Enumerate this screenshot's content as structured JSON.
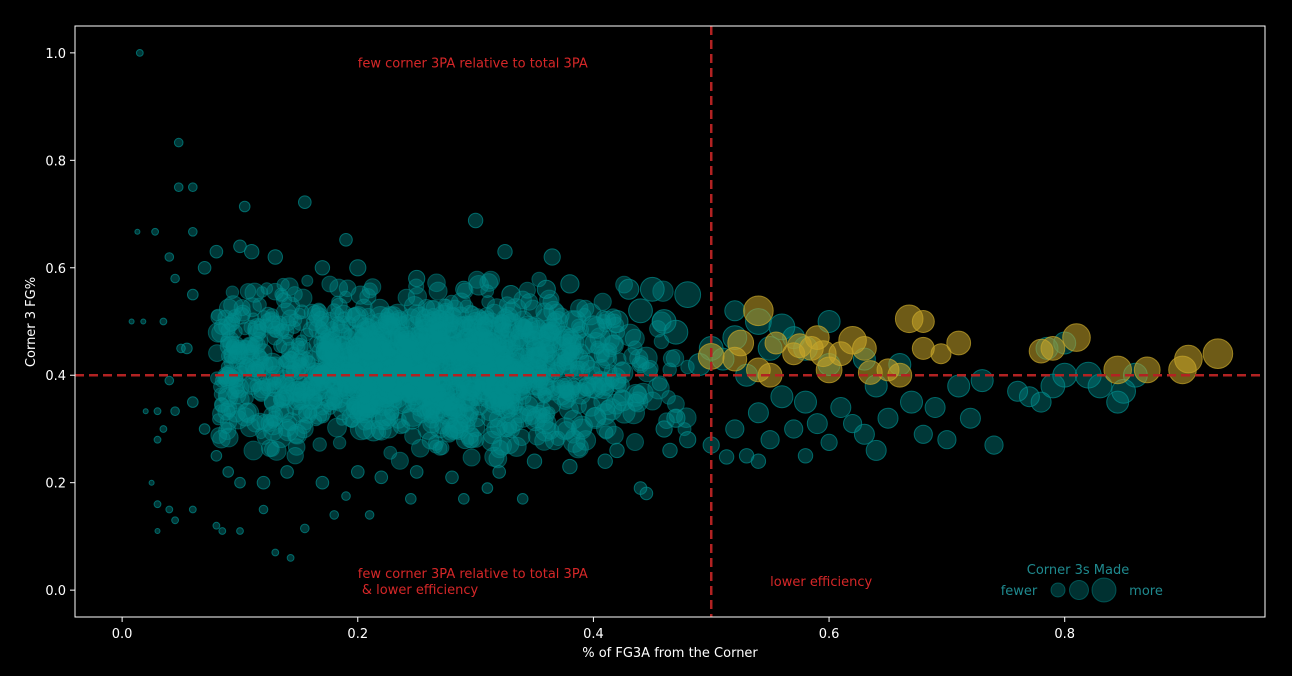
{
  "chart_data": {
    "type": "scatter",
    "title": "",
    "xlabel": "% of FG3A from the Corner",
    "ylabel": "Corner 3 FG%",
    "xlim": [
      -0.04,
      0.97
    ],
    "ylim": [
      -0.05,
      1.05
    ],
    "x_ticks": [
      "0.0",
      "0.2",
      "0.4",
      "0.6",
      "0.8"
    ],
    "x_tick_values": [
      0.0,
      0.2,
      0.4,
      0.6,
      0.8
    ],
    "y_ticks": [
      "0.0",
      "0.2",
      "0.4",
      "0.6",
      "0.8",
      "1.0"
    ],
    "y_tick_values": [
      0.0,
      0.2,
      0.4,
      0.6,
      0.8,
      1.0
    ],
    "grid": false,
    "reference_lines": {
      "x": 0.5,
      "y": 0.4,
      "color": "#b22222"
    },
    "annotations": [
      {
        "text": "few corner 3PA relative to total 3PA",
        "x": 0.2,
        "y": 0.98
      },
      {
        "text": "few corner 3PA relative to total 3PA",
        "x": 0.2,
        "y": 0.03
      },
      {
        "text": " & lower efficiency",
        "x": 0.2,
        "y": 0.0
      },
      {
        "text": "lower efficiency",
        "x": 0.55,
        "y": 0.015
      }
    ],
    "legend": {
      "title": "Corner 3s Made",
      "low_label": "fewer",
      "high_label": "more",
      "placement": "lower-right"
    },
    "colors": {
      "base": "#008b8b",
      "highlight": "#c8a62a"
    },
    "series": [
      {
        "color": "base",
        "points": [
          [
            0.015,
            1.0,
            2
          ],
          [
            0.048,
            0.833,
            3
          ],
          [
            0.048,
            0.75,
            3
          ],
          [
            0.06,
            0.75,
            3
          ],
          [
            0.104,
            0.714,
            4
          ],
          [
            0.155,
            0.722,
            5
          ],
          [
            0.013,
            0.667,
            1
          ],
          [
            0.028,
            0.667,
            2
          ],
          [
            0.06,
            0.667,
            3
          ],
          [
            0.19,
            0.652,
            5
          ],
          [
            0.3,
            0.688,
            6
          ],
          [
            0.325,
            0.63,
            6
          ],
          [
            0.365,
            0.62,
            7
          ],
          [
            0.04,
            0.62,
            3
          ],
          [
            0.008,
            0.5,
            1
          ],
          [
            0.018,
            0.5,
            1
          ],
          [
            0.035,
            0.5,
            2
          ],
          [
            0.045,
            0.58,
            3
          ],
          [
            0.05,
            0.45,
            3
          ],
          [
            0.04,
            0.39,
            3
          ],
          [
            0.02,
            0.333,
            1
          ],
          [
            0.03,
            0.333,
            2
          ],
          [
            0.045,
            0.333,
            3
          ],
          [
            0.035,
            0.3,
            2
          ],
          [
            0.03,
            0.28,
            2
          ],
          [
            0.025,
            0.2,
            1
          ],
          [
            0.03,
            0.16,
            2
          ],
          [
            0.04,
            0.15,
            2
          ],
          [
            0.045,
            0.13,
            2
          ],
          [
            0.03,
            0.11,
            1
          ],
          [
            0.06,
            0.15,
            2
          ],
          [
            0.08,
            0.12,
            2
          ],
          [
            0.085,
            0.11,
            2
          ],
          [
            0.1,
            0.11,
            2
          ],
          [
            0.13,
            0.07,
            2
          ],
          [
            0.143,
            0.06,
            2
          ],
          [
            0.155,
            0.115,
            3
          ],
          [
            0.18,
            0.14,
            3
          ],
          [
            0.12,
            0.15,
            3
          ],
          [
            0.21,
            0.14,
            3
          ],
          [
            0.19,
            0.175,
            3
          ],
          [
            0.245,
            0.17,
            4
          ],
          [
            0.29,
            0.17,
            4
          ],
          [
            0.31,
            0.19,
            4
          ],
          [
            0.34,
            0.17,
            4
          ],
          [
            0.44,
            0.19,
            5
          ],
          [
            0.445,
            0.18,
            5
          ],
          [
            0.465,
            0.26,
            6
          ],
          [
            0.5,
            0.27,
            7
          ],
          [
            0.513,
            0.248,
            6
          ],
          [
            0.53,
            0.25,
            6
          ],
          [
            0.54,
            0.24,
            6
          ],
          [
            0.58,
            0.25,
            6
          ],
          [
            0.6,
            0.275,
            7
          ],
          [
            0.62,
            0.31,
            8
          ],
          [
            0.63,
            0.29,
            9
          ],
          [
            0.64,
            0.26,
            9
          ],
          [
            0.68,
            0.29,
            8
          ],
          [
            0.7,
            0.28,
            8
          ],
          [
            0.74,
            0.27,
            8
          ],
          [
            0.72,
            0.32,
            9
          ],
          [
            0.65,
            0.32,
            9
          ],
          [
            0.67,
            0.35,
            10
          ],
          [
            0.69,
            0.34,
            9
          ],
          [
            0.71,
            0.38,
            10
          ],
          [
            0.73,
            0.39,
            10
          ],
          [
            0.76,
            0.37,
            9
          ],
          [
            0.77,
            0.36,
            9
          ],
          [
            0.78,
            0.35,
            9
          ],
          [
            0.79,
            0.38,
            11
          ],
          [
            0.8,
            0.4,
            11
          ],
          [
            0.785,
            0.45,
            10
          ],
          [
            0.82,
            0.4,
            12
          ],
          [
            0.83,
            0.38,
            11
          ],
          [
            0.845,
            0.35,
            10
          ],
          [
            0.85,
            0.37,
            11
          ],
          [
            0.86,
            0.4,
            11
          ],
          [
            0.8,
            0.46,
            10
          ],
          [
            0.63,
            0.43,
            10
          ],
          [
            0.66,
            0.42,
            10
          ],
          [
            0.6,
            0.5,
            10
          ],
          [
            0.56,
            0.49,
            12
          ],
          [
            0.52,
            0.52,
            9
          ],
          [
            0.48,
            0.55,
            12
          ],
          [
            0.45,
            0.56,
            11
          ],
          [
            0.43,
            0.56,
            9
          ],
          [
            0.38,
            0.57,
            8
          ],
          [
            0.36,
            0.56,
            8
          ],
          [
            0.33,
            0.55,
            8
          ],
          [
            0.29,
            0.56,
            7
          ],
          [
            0.25,
            0.58,
            7
          ],
          [
            0.2,
            0.6,
            7
          ],
          [
            0.17,
            0.6,
            6
          ],
          [
            0.13,
            0.62,
            6
          ],
          [
            0.11,
            0.63,
            6
          ],
          [
            0.1,
            0.64,
            5
          ],
          [
            0.08,
            0.63,
            5
          ],
          [
            0.07,
            0.6,
            5
          ],
          [
            0.06,
            0.55,
            4
          ],
          [
            0.055,
            0.45,
            4
          ],
          [
            0.06,
            0.35,
            4
          ],
          [
            0.07,
            0.3,
            4
          ],
          [
            0.08,
            0.25,
            4
          ],
          [
            0.09,
            0.22,
            4
          ],
          [
            0.1,
            0.2,
            4
          ],
          [
            0.12,
            0.2,
            5
          ],
          [
            0.14,
            0.22,
            5
          ],
          [
            0.17,
            0.2,
            5
          ],
          [
            0.2,
            0.22,
            5
          ],
          [
            0.22,
            0.21,
            5
          ],
          [
            0.25,
            0.22,
            5
          ],
          [
            0.28,
            0.21,
            5
          ],
          [
            0.32,
            0.22,
            5
          ],
          [
            0.35,
            0.24,
            6
          ],
          [
            0.38,
            0.23,
            6
          ],
          [
            0.41,
            0.24,
            6
          ],
          [
            0.42,
            0.26,
            6
          ],
          [
            0.46,
            0.3,
            7
          ],
          [
            0.48,
            0.28,
            7
          ],
          [
            0.47,
            0.32,
            8
          ],
          [
            0.52,
            0.3,
            8
          ],
          [
            0.55,
            0.28,
            8
          ],
          [
            0.57,
            0.3,
            8
          ],
          [
            0.59,
            0.31,
            9
          ],
          [
            0.61,
            0.34,
            9
          ],
          [
            0.64,
            0.38,
            10
          ],
          [
            0.56,
            0.36,
            10
          ],
          [
            0.54,
            0.33,
            9
          ],
          [
            0.58,
            0.35,
            10
          ],
          [
            0.53,
            0.4,
            10
          ],
          [
            0.51,
            0.43,
            10
          ],
          [
            0.5,
            0.45,
            11
          ],
          [
            0.49,
            0.42,
            10
          ],
          [
            0.47,
            0.48,
            11
          ],
          [
            0.46,
            0.5,
            11
          ],
          [
            0.44,
            0.52,
            11
          ],
          [
            0.42,
            0.5,
            10
          ],
          [
            0.4,
            0.49,
            10
          ],
          [
            0.58,
            0.45,
            11
          ],
          [
            0.55,
            0.45,
            11
          ],
          [
            0.6,
            0.42,
            10
          ],
          [
            0.52,
            0.47,
            11
          ],
          [
            0.54,
            0.5,
            12
          ],
          [
            0.57,
            0.47,
            10
          ]
        ],
        "cloud": {
          "center": [
            0.25,
            0.41
          ],
          "spread": [
            0.1,
            0.07
          ],
          "count": 1500
        }
      },
      {
        "color": "highlight",
        "points": [
          [
            0.5,
            0.435,
            12
          ],
          [
            0.52,
            0.43,
            11
          ],
          [
            0.525,
            0.46,
            12
          ],
          [
            0.54,
            0.52,
            14
          ],
          [
            0.54,
            0.41,
            11
          ],
          [
            0.55,
            0.4,
            11
          ],
          [
            0.555,
            0.46,
            10
          ],
          [
            0.57,
            0.44,
            10
          ],
          [
            0.575,
            0.455,
            11
          ],
          [
            0.585,
            0.45,
            11
          ],
          [
            0.59,
            0.47,
            11
          ],
          [
            0.595,
            0.44,
            12
          ],
          [
            0.6,
            0.41,
            12
          ],
          [
            0.61,
            0.44,
            11
          ],
          [
            0.62,
            0.465,
            13
          ],
          [
            0.63,
            0.45,
            11
          ],
          [
            0.635,
            0.405,
            11
          ],
          [
            0.65,
            0.41,
            10
          ],
          [
            0.66,
            0.4,
            11
          ],
          [
            0.668,
            0.505,
            13
          ],
          [
            0.68,
            0.5,
            10
          ],
          [
            0.68,
            0.45,
            10
          ],
          [
            0.695,
            0.44,
            9
          ],
          [
            0.71,
            0.46,
            11
          ],
          [
            0.78,
            0.445,
            11
          ],
          [
            0.79,
            0.45,
            11
          ],
          [
            0.81,
            0.47,
            13
          ],
          [
            0.845,
            0.41,
            13
          ],
          [
            0.87,
            0.41,
            12
          ],
          [
            0.9,
            0.41,
            13
          ],
          [
            0.905,
            0.43,
            13
          ],
          [
            0.93,
            0.44,
            14
          ]
        ]
      }
    ]
  }
}
